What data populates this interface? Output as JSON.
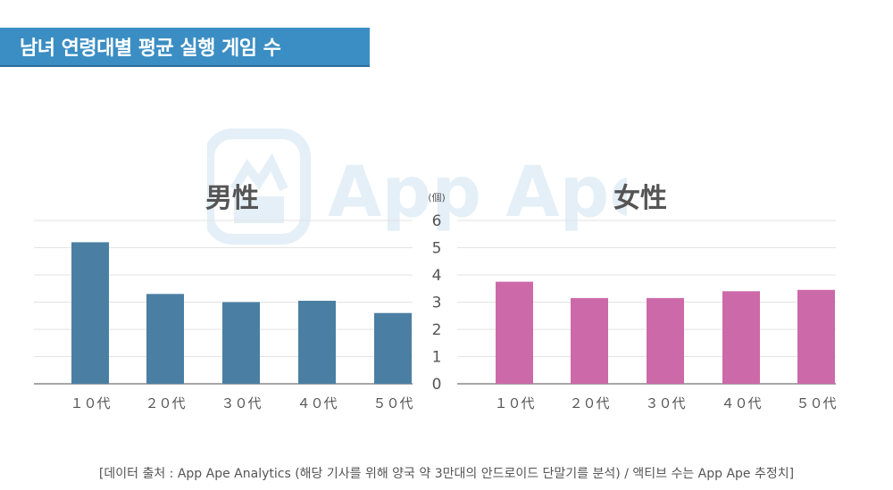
{
  "header": {
    "title": "남녀 연령대별 평균 실행 게임 수"
  },
  "watermark": {
    "text": "App Ape",
    "icon": "app-ape-logo-icon"
  },
  "footer": {
    "source": "[데이터 출처 : App Ape Analytics (해당 기사를 위해 양국 약 3만대의 안드로이드 단말기를 분석) / 액티브 수는 App Ape 추정치]"
  },
  "colors": {
    "male": "#4a7fa3",
    "female": "#cc6aa9",
    "title_bg": "#3b8ec3",
    "grid": "#e3e3e3",
    "axis": "#888888"
  },
  "chart_data": [
    {
      "type": "bar",
      "title": "男性",
      "categories": [
        "１０代",
        "２０代",
        "３０代",
        "４０代",
        "５０代"
      ],
      "values": [
        5.2,
        3.3,
        3.0,
        3.05,
        2.6
      ],
      "ylim": [
        0,
        6
      ],
      "grid": true
    },
    {
      "type": "bar",
      "title": "女性",
      "categories": [
        "１０代",
        "２０代",
        "３０代",
        "４０代",
        "５０代"
      ],
      "values": [
        3.75,
        3.15,
        3.15,
        3.4,
        3.45
      ],
      "ylim": [
        0,
        6
      ],
      "ylabel": "(個)",
      "yticks": [
        "0",
        "1",
        "2",
        "3",
        "4",
        "5",
        "6"
      ],
      "grid": true
    }
  ]
}
